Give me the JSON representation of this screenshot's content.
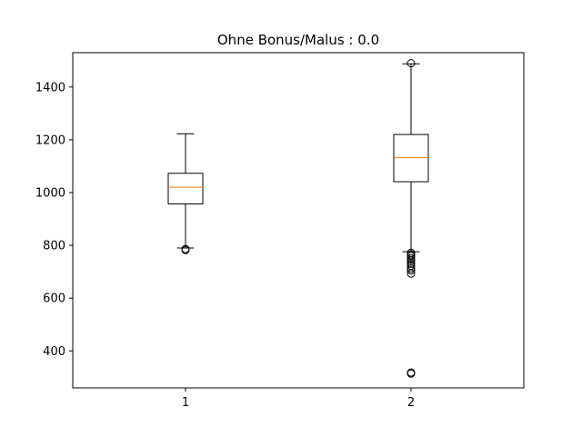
{
  "chart_data": {
    "type": "boxplot",
    "title": "Ohne Bonus/Malus :  0.0",
    "xlabel": "",
    "ylabel": "",
    "ylim": [
      260,
      1530
    ],
    "y_ticks": [
      400,
      600,
      800,
      1000,
      1200,
      1400
    ],
    "categories": [
      "1",
      "2"
    ],
    "grid": false,
    "boxes": [
      {
        "category": "1",
        "whisker_low": 790,
        "q1": 957,
        "median": 1020,
        "q3": 1073,
        "whisker_high": 1223,
        "outliers": [
          782,
          786
        ]
      },
      {
        "category": "2",
        "whisker_low": 776,
        "q1": 1041,
        "median": 1132,
        "q3": 1220,
        "whisker_high": 1488,
        "outliers": [
          1490,
          772,
          766,
          760,
          752,
          745,
          738,
          730,
          722,
          712,
          705,
          693,
          318,
          314
        ]
      }
    ],
    "colors": {
      "box": "#000000",
      "median": "#ff7f0e",
      "outlier": "#000000"
    }
  }
}
